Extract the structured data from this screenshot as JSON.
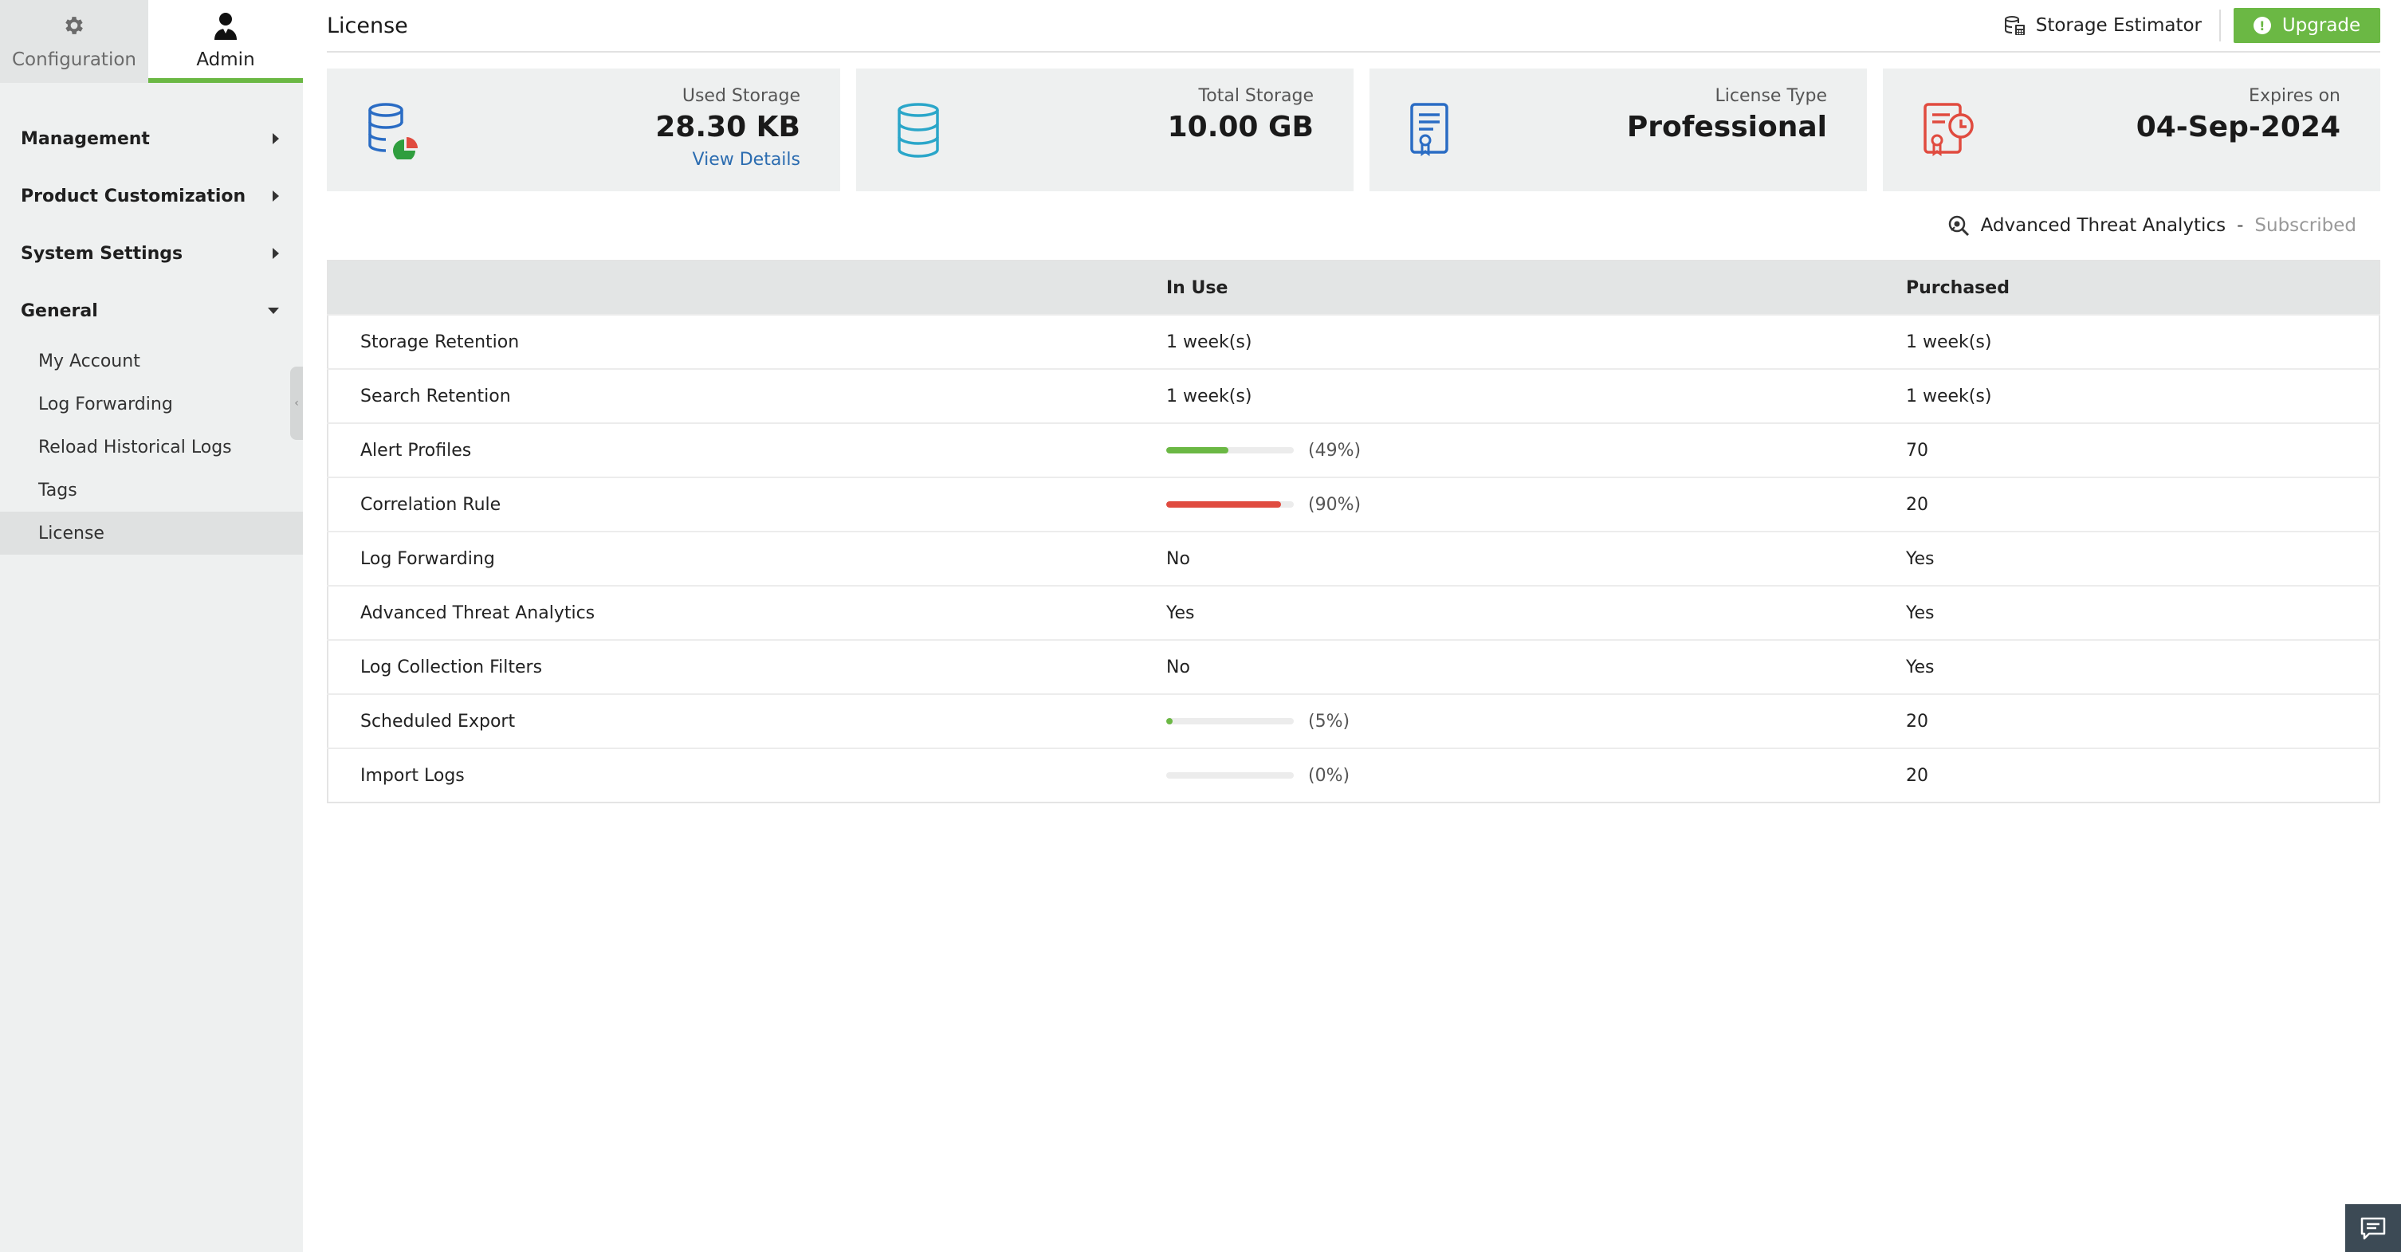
{
  "tabs": {
    "configuration": "Configuration",
    "admin": "Admin"
  },
  "menu": {
    "management": "Management",
    "product_customization": "Product Customization",
    "system_settings": "System Settings",
    "general": "General",
    "sub_items": [
      "My Account",
      "Log Forwarding",
      "Reload Historical Logs",
      "Tags",
      "License"
    ]
  },
  "header": {
    "title": "License",
    "storage_estimator": "Storage Estimator",
    "upgrade": "Upgrade"
  },
  "cards": {
    "used_storage": {
      "label": "Used Storage",
      "value": "28.30 KB",
      "link": "View Details"
    },
    "total_storage": {
      "label": "Total Storage",
      "value": "10.00 GB"
    },
    "license_type": {
      "label": "License Type",
      "value": "Professional"
    },
    "expires": {
      "label": "Expires on",
      "value": "04-Sep-2024"
    }
  },
  "ata": {
    "name": "Advanced Threat Analytics",
    "separator": "-",
    "status": "Subscribed"
  },
  "table": {
    "headers": {
      "name": "",
      "in_use": "In Use",
      "purchased": "Purchased"
    },
    "rows": [
      {
        "name": "Storage Retention",
        "in_use": "1 week(s)",
        "purchased": "1 week(s)"
      },
      {
        "name": "Search Retention",
        "in_use": "1 week(s)",
        "purchased": "1 week(s)"
      },
      {
        "name": "Alert Profiles",
        "percent_label": "(49%)",
        "percent": 49,
        "bar_color": "#6bb844",
        "purchased": "70"
      },
      {
        "name": "Correlation Rule",
        "percent_label": "(90%)",
        "percent": 90,
        "bar_color": "#e04b3f",
        "purchased": "20"
      },
      {
        "name": "Log Forwarding",
        "in_use": "No",
        "purchased": "Yes"
      },
      {
        "name": "Advanced Threat Analytics",
        "in_use": "Yes",
        "purchased": "Yes"
      },
      {
        "name": "Log Collection Filters",
        "in_use": "No",
        "purchased": "Yes"
      },
      {
        "name": "Scheduled Export",
        "percent_label": "(5%)",
        "percent": 5,
        "bar_color": "#6bb844",
        "purchased": "20"
      },
      {
        "name": "Import Logs",
        "percent_label": "(0%)",
        "percent": 0,
        "bar_color": "#6bb844",
        "purchased": "20"
      }
    ]
  },
  "colors": {
    "accent": "#6bb844",
    "danger": "#e04b3f",
    "link": "#2b6cb0",
    "icon_blue": "#2a6cc4",
    "icon_teal": "#2aa6c9",
    "icon_red": "#e04b3f"
  },
  "icons": {
    "configuration": "gear-icon",
    "admin": "user-icon",
    "storage_estimator": "database-calculator-icon",
    "upgrade": "upgrade-icon",
    "used_storage": "database-pie-icon",
    "total_storage": "database-icon",
    "license_type": "certificate-icon",
    "expires": "certificate-clock-icon",
    "ata": "threat-analytics-icon",
    "chat": "chat-icon"
  }
}
